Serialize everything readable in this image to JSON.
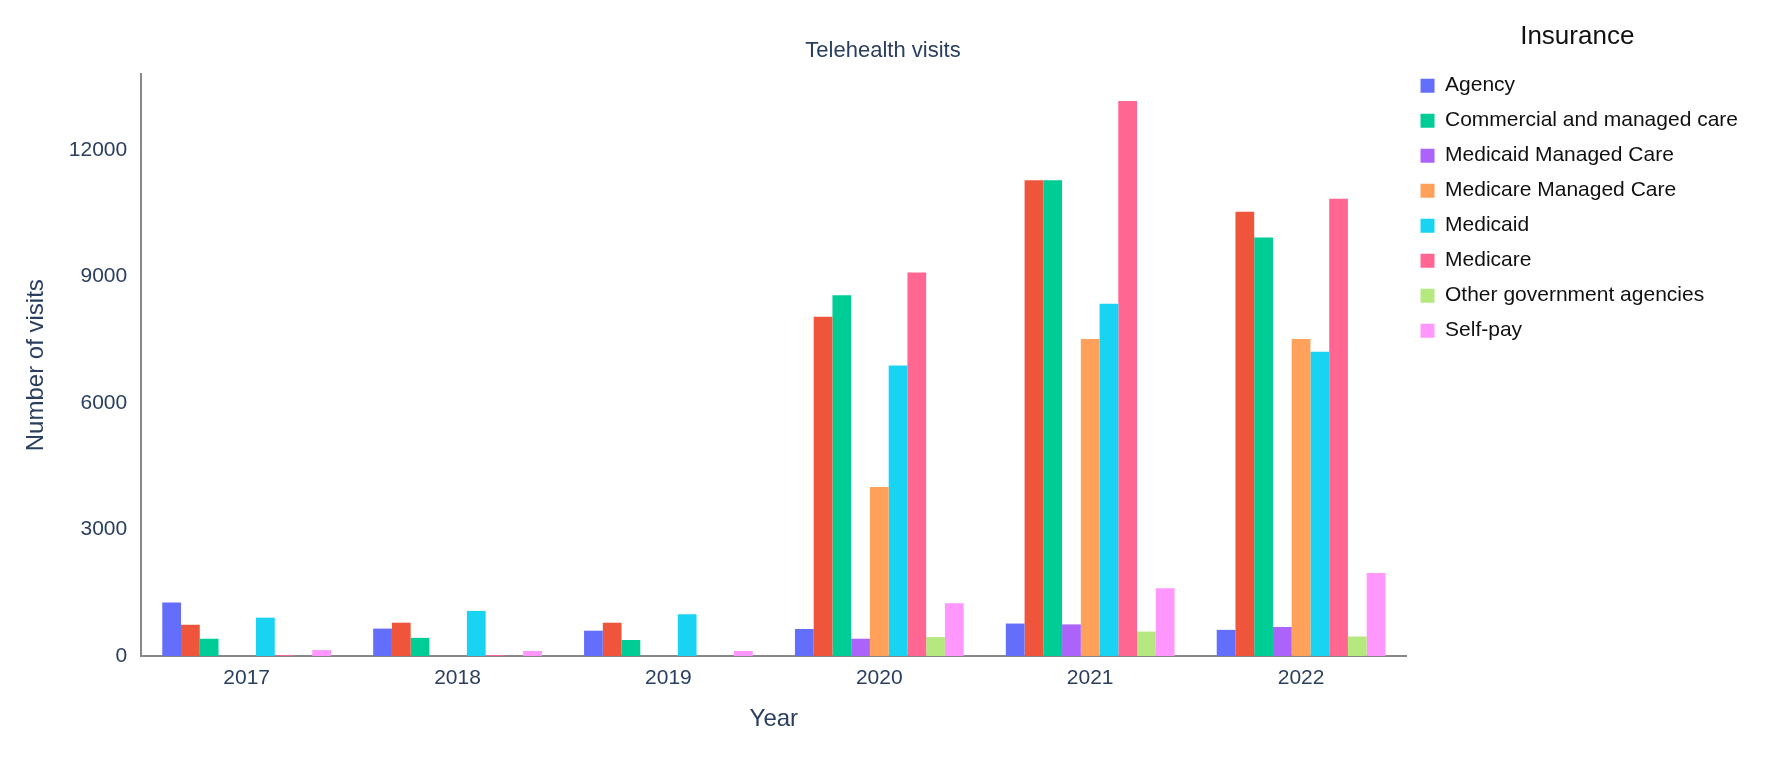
{
  "chart_data": {
    "type": "bar",
    "title": "Telehealth visits",
    "xlabel": "Year",
    "ylabel": "Number of visits",
    "legend_title": "Insurance",
    "legend": "right",
    "categories": [
      "2017",
      "2018",
      "2019",
      "2020",
      "2021",
      "2022"
    ],
    "series": [
      {
        "name": "Agency",
        "color": "#636efa",
        "values": [
          1270,
          650,
          600,
          640,
          770,
          620
        ]
      },
      {
        "color": "#ef553b",
        "values": [
          740,
          790,
          790,
          8050,
          11290,
          10540
        ]
      },
      {
        "name": "Commercial and managed care",
        "color": "#00cc96",
        "values": [
          410,
          430,
          380,
          8560,
          11290,
          9930
        ]
      },
      {
        "name": "Medicaid Managed Care",
        "color": "#ab63fa",
        "values": [
          0,
          0,
          0,
          410,
          750,
          690
        ]
      },
      {
        "name": "Medicare Managed Care",
        "color": "#ffa15a",
        "values": [
          0,
          0,
          0,
          4010,
          7520,
          7520
        ]
      },
      {
        "name": "Medicaid",
        "color": "#19d3f3",
        "values": [
          910,
          1070,
          990,
          6890,
          8360,
          7220
        ]
      },
      {
        "name": "Medicare",
        "color": "#ff6692",
        "values": [
          20,
          20,
          0,
          9100,
          13170,
          10850
        ]
      },
      {
        "name": "Other government agencies",
        "color": "#b6e880",
        "values": [
          0,
          0,
          0,
          450,
          580,
          460
        ]
      },
      {
        "name": "Self-pay",
        "color": "#ff97ff",
        "values": [
          140,
          120,
          120,
          1250,
          1610,
          1970
        ]
      }
    ],
    "ylim": [
      0,
      13800
    ],
    "yticks": [
      0,
      3000,
      6000,
      9000,
      12000
    ],
    "grid": false
  }
}
